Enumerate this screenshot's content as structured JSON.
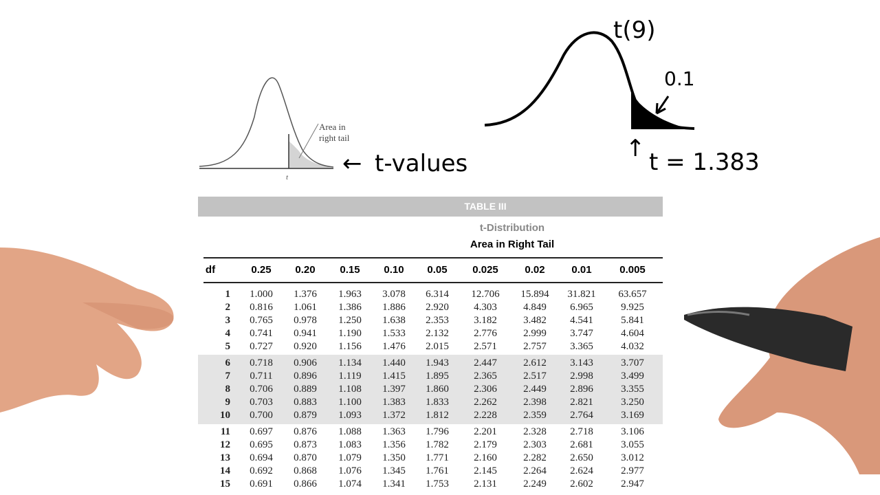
{
  "curve_small": {
    "annotation": "Area in right tail",
    "annotation_line1": "Area in",
    "annotation_line2": "right tail",
    "axis_label": "t"
  },
  "handwriting": {
    "arrow_label": "t-values",
    "dist_label": "t(9)",
    "tail_area": "0.1",
    "t_value": "t = 1.383"
  },
  "table": {
    "title": "TABLE III",
    "subtitle": "t-Distribution",
    "caption": "Area in Right Tail",
    "columns": [
      "df",
      "0.25",
      "0.20",
      "0.15",
      "0.10",
      "0.05",
      "0.025",
      "0.02",
      "0.01",
      "0.005"
    ],
    "rows": [
      [
        "1",
        "1.000",
        "1.376",
        "1.963",
        "3.078",
        "6.314",
        "12.706",
        "15.894",
        "31.821",
        "63.657"
      ],
      [
        "2",
        "0.816",
        "1.061",
        "1.386",
        "1.886",
        "2.920",
        "4.303",
        "4.849",
        "6.965",
        "9.925"
      ],
      [
        "3",
        "0.765",
        "0.978",
        "1.250",
        "1.638",
        "2.353",
        "3.182",
        "3.482",
        "4.541",
        "5.841"
      ],
      [
        "4",
        "0.741",
        "0.941",
        "1.190",
        "1.533",
        "2.132",
        "2.776",
        "2.999",
        "3.747",
        "4.604"
      ],
      [
        "5",
        "0.727",
        "0.920",
        "1.156",
        "1.476",
        "2.015",
        "2.571",
        "2.757",
        "3.365",
        "4.032"
      ],
      [
        "6",
        "0.718",
        "0.906",
        "1.134",
        "1.440",
        "1.943",
        "2.447",
        "2.612",
        "3.143",
        "3.707"
      ],
      [
        "7",
        "0.711",
        "0.896",
        "1.119",
        "1.415",
        "1.895",
        "2.365",
        "2.517",
        "2.998",
        "3.499"
      ],
      [
        "8",
        "0.706",
        "0.889",
        "1.108",
        "1.397",
        "1.860",
        "2.306",
        "2.449",
        "2.896",
        "3.355"
      ],
      [
        "9",
        "0.703",
        "0.883",
        "1.100",
        "1.383",
        "1.833",
        "2.262",
        "2.398",
        "2.821",
        "3.250"
      ],
      [
        "10",
        "0.700",
        "0.879",
        "1.093",
        "1.372",
        "1.812",
        "2.228",
        "2.359",
        "2.764",
        "3.169"
      ],
      [
        "11",
        "0.697",
        "0.876",
        "1.088",
        "1.363",
        "1.796",
        "2.201",
        "2.328",
        "2.718",
        "3.106"
      ],
      [
        "12",
        "0.695",
        "0.873",
        "1.083",
        "1.356",
        "1.782",
        "2.179",
        "2.303",
        "2.681",
        "3.055"
      ],
      [
        "13",
        "0.694",
        "0.870",
        "1.079",
        "1.350",
        "1.771",
        "2.160",
        "2.282",
        "2.650",
        "3.012"
      ],
      [
        "14",
        "0.692",
        "0.868",
        "1.076",
        "1.345",
        "1.761",
        "2.145",
        "2.264",
        "2.624",
        "2.977"
      ],
      [
        "15",
        "0.691",
        "0.866",
        "1.074",
        "1.341",
        "1.753",
        "2.131",
        "2.249",
        "2.602",
        "2.947"
      ]
    ]
  }
}
